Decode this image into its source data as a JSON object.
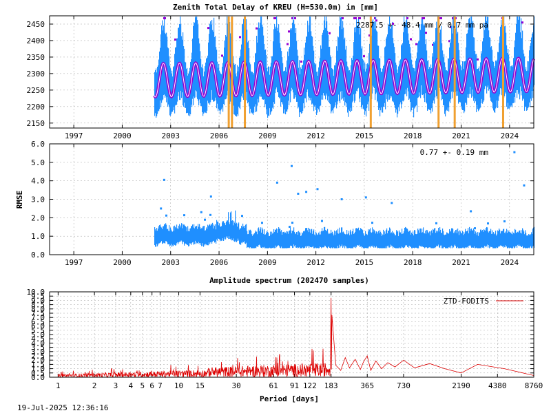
{
  "colors": {
    "ztd_points": "#1f8fff",
    "ztd_model": "#9400d3",
    "outliers": "#9400d3",
    "offsets": "#f0a030",
    "rmse_points": "#1f8fff",
    "spectrum": "#dd0000",
    "grid": "#a0a0a0"
  },
  "timestamp": "19-Jul-2025 12:36:16",
  "chart_data": [
    {
      "type": "scatter",
      "title": "Zenith Total Delay of KREU (H=530.0m) in [mm]",
      "annotation": "2287.5 +-  48.4 mm /  0.7 mm pa",
      "x_ticks": [
        "1997",
        "2000",
        "2003",
        "2006",
        "2009",
        "2012",
        "2015",
        "2018",
        "2021",
        "2024"
      ],
      "x_tick_values": [
        1997,
        2000,
        2003,
        2006,
        2009,
        2012,
        2015,
        2018,
        2021,
        2024
      ],
      "y_ticks": [
        "2150",
        "2200",
        "2250",
        "2300",
        "2350",
        "2400",
        "2450"
      ],
      "y_tick_values": [
        2150,
        2200,
        2250,
        2300,
        2350,
        2400,
        2450
      ],
      "xlim": [
        1995.5,
        2025.5
      ],
      "ylim": [
        2135,
        2475
      ],
      "data_start": 2002.0,
      "data_end": 2025.5,
      "mean": 2287.5,
      "seasonal_amplitude": 48.4,
      "trend_per_year": 0.7,
      "offsets": [
        2006.6,
        2006.8,
        2007.6,
        2015.4,
        2019.6,
        2020.6,
        2023.6
      ],
      "grid": true
    },
    {
      "type": "scatter",
      "ylabel": "RMSE",
      "annotation": "0.77 +-  0.19 mm",
      "x_ticks": [
        "1997",
        "2000",
        "2003",
        "2006",
        "2009",
        "2012",
        "2015",
        "2018",
        "2021",
        "2024"
      ],
      "x_tick_values": [
        1997,
        2000,
        2003,
        2006,
        2009,
        2012,
        2015,
        2018,
        2021,
        2024
      ],
      "y_ticks": [
        "0.0",
        "1.0",
        "2.0",
        "3.0",
        "4.0",
        "5.0",
        "6.0"
      ],
      "y_tick_values": [
        0,
        1,
        2,
        3,
        4,
        5,
        6
      ],
      "xlim": [
        1995.5,
        2025.5
      ],
      "ylim": [
        0,
        6
      ],
      "mean": 0.77,
      "std": 0.19,
      "outlier_points": [
        [
          2002.6,
          4.05
        ],
        [
          2005.5,
          3.15
        ],
        [
          2009.6,
          3.9
        ],
        [
          2010.5,
          4.8
        ],
        [
          2010.9,
          3.3
        ],
        [
          2011.4,
          3.4
        ],
        [
          2012.1,
          3.55
        ],
        [
          2013.6,
          3.0
        ],
        [
          2015.1,
          3.1
        ],
        [
          2016.7,
          2.8
        ],
        [
          2021.6,
          2.35
        ],
        [
          2024.3,
          5.55
        ],
        [
          2024.9,
          3.75
        ],
        [
          2002.4,
          2.5
        ],
        [
          2004.9,
          2.3
        ]
      ],
      "grid": true
    },
    {
      "type": "line",
      "title": "Amplitude spectrum (202470 samples)",
      "xlabel": "Period [days]",
      "x_scale": "log",
      "x_ticks": [
        "1",
        "2",
        "3",
        "4",
        "5",
        "6",
        "7",
        "10",
        "15",
        "30",
        "61",
        "91",
        "122",
        "183",
        "365",
        "730",
        "2190",
        "4380",
        "8760"
      ],
      "x_tick_values": [
        1,
        2,
        3,
        4,
        5,
        6,
        7,
        10,
        15,
        30,
        61,
        91,
        122,
        183,
        365,
        730,
        2190,
        4380,
        8760
      ],
      "y_ticks": [
        "0.0",
        "0.5",
        "1.0",
        "1.5",
        "2.0",
        "2.5",
        "3.0",
        "3.5",
        "4.0",
        "4.5",
        "5.0",
        "5.5",
        "6.0",
        "6.5",
        "7.0",
        "7.5",
        "8.0",
        "8.5",
        "9.0",
        "9.5",
        "10.0"
      ],
      "y_tick_values": [
        0,
        0.5,
        1,
        1.5,
        2,
        2.5,
        3,
        3.5,
        4,
        4.5,
        5,
        5.5,
        6,
        6.5,
        7,
        7.5,
        8,
        8.5,
        9,
        9.5,
        10
      ],
      "xlim": [
        0.85,
        8760
      ],
      "ylim": [
        0,
        10
      ],
      "legend": "ZTD-FODITS",
      "legend_position": "top-right",
      "peaks": [
        [
          183,
          9.3
        ],
        [
          183,
          7.3
        ],
        [
          365,
          2.5
        ],
        [
          730,
          2.0
        ],
        [
          1200,
          1.6
        ],
        [
          2190,
          0.5
        ],
        [
          3000,
          1.5
        ],
        [
          8760,
          0.2
        ]
      ],
      "grid": true
    }
  ]
}
